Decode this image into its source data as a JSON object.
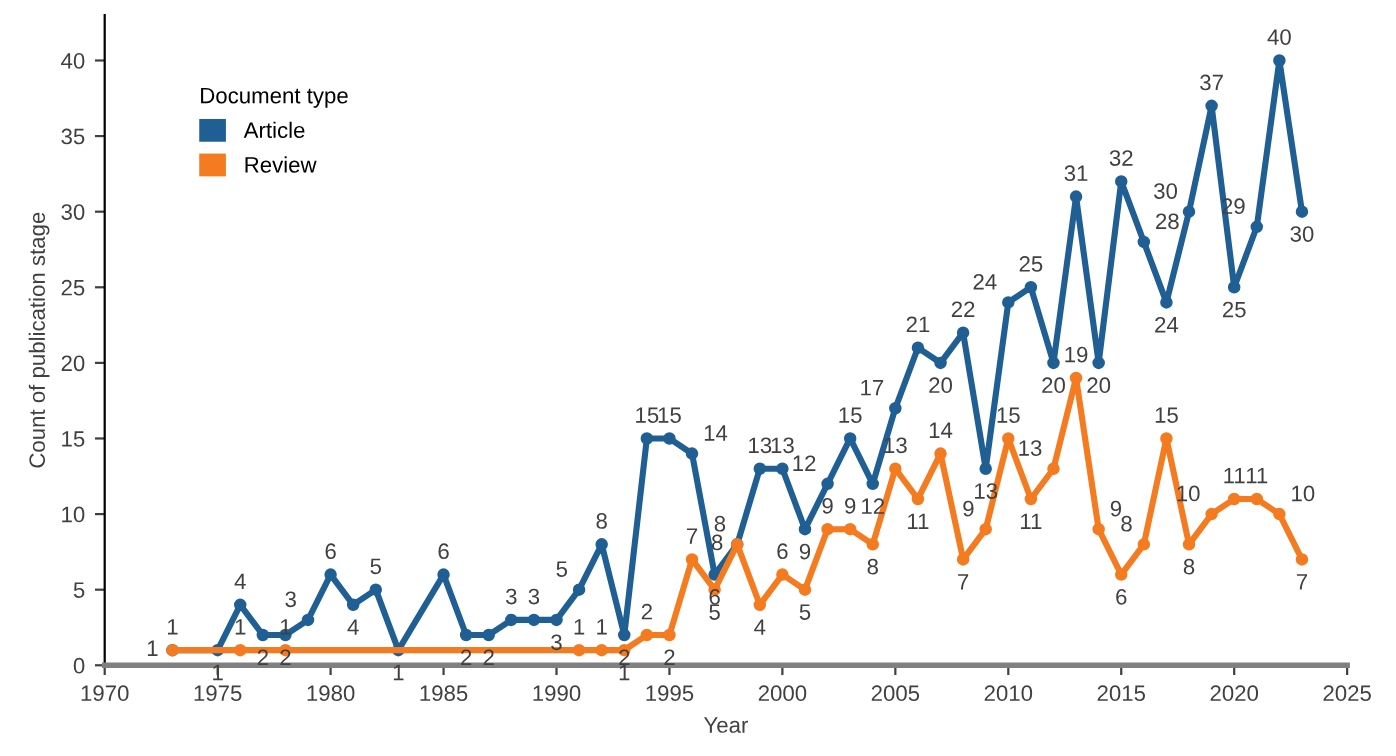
{
  "chart_data": {
    "type": "line",
    "xlabel": "Year",
    "ylabel": "Count of publication stage",
    "legend_title": "Document type",
    "legend": "top left",
    "marker": "circle",
    "grid": false,
    "data_labels": true,
    "xlim": [
      1970,
      2025
    ],
    "xticks": [
      1970,
      1975,
      1980,
      1985,
      1990,
      1995,
      2000,
      2005,
      2010,
      2015,
      2020,
      2025
    ],
    "ylim": [
      0,
      43
    ],
    "yticks": [
      0,
      5,
      10,
      15,
      20,
      25,
      30,
      35,
      40
    ],
    "series": [
      {
        "name": "Article",
        "color": "#1f5f94",
        "x": [
          1973,
          1975,
          1976,
          1977,
          1978,
          1979,
          1980,
          1981,
          1982,
          1983,
          1985,
          1986,
          1987,
          1988,
          1989,
          1990,
          1991,
          1992,
          1993,
          1994,
          1995,
          1996,
          1997,
          1998,
          1999,
          2000,
          2001,
          2002,
          2003,
          2004,
          2005,
          2006,
          2007,
          2008,
          2009,
          2010,
          2011,
          2012,
          2013,
          2014,
          2015,
          2016,
          2017,
          2018,
          2019,
          2020,
          2021,
          2022,
          2023
        ],
        "values": [
          1,
          1,
          4,
          2,
          2,
          3,
          6,
          4,
          5,
          1,
          6,
          2,
          2,
          3,
          3,
          3,
          5,
          8,
          2,
          15,
          15,
          14,
          6,
          8,
          13,
          13,
          9,
          12,
          15,
          12,
          17,
          21,
          20,
          22,
          13,
          24,
          25,
          20,
          31,
          20,
          32,
          28,
          24,
          30,
          37,
          25,
          29,
          40,
          30
        ]
      },
      {
        "name": "Review",
        "color": "#f47b20",
        "x": [
          1973,
          1976,
          1978,
          1991,
          1992,
          1993,
          1994,
          1995,
          1996,
          1997,
          1998,
          1999,
          2000,
          2001,
          2002,
          2003,
          2004,
          2005,
          2006,
          2007,
          2008,
          2009,
          2010,
          2011,
          2012,
          2013,
          2014,
          2015,
          2016,
          2017,
          2018,
          2019,
          2020,
          2021,
          2022,
          2023
        ],
        "values": [
          1,
          1,
          1,
          1,
          1,
          1,
          2,
          2,
          7,
          5,
          8,
          4,
          6,
          5,
          9,
          9,
          8,
          13,
          11,
          14,
          7,
          9,
          15,
          11,
          13,
          19,
          9,
          6,
          8,
          15,
          8,
          10,
          11,
          11,
          10,
          7
        ]
      }
    ]
  }
}
